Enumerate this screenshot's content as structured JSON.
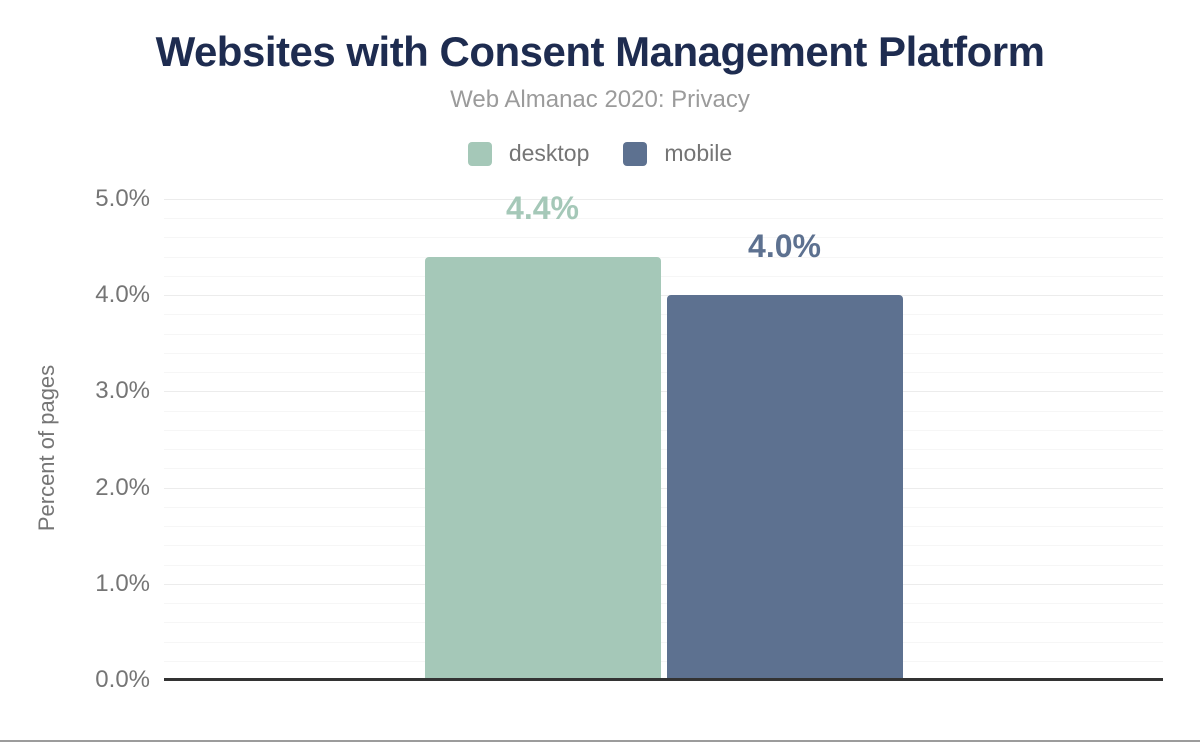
{
  "header": {
    "title": "Websites with Consent Management Platform",
    "subtitle": "Web Almanac 2020: Privacy",
    "title_color": "#1e2c50",
    "subtitle_color": "#9b9b9b"
  },
  "legend": {
    "items": [
      {
        "label": "desktop",
        "color": "#a5c8b8"
      },
      {
        "label": "mobile",
        "color": "#5d7190"
      }
    ],
    "text_color": "#757575"
  },
  "chart_data": {
    "type": "bar",
    "title": "Websites with Consent Management Platform",
    "subtitle": "Web Almanac 2020: Privacy",
    "categories": [
      "desktop",
      "mobile"
    ],
    "values": [
      4.4,
      4.0
    ],
    "value_labels": [
      "4.4%",
      "4.0%"
    ],
    "series_colors": [
      "#a5c8b8",
      "#5d7190"
    ],
    "ylabel": "Percent of pages",
    "xlabel": "",
    "ylim": [
      0,
      5
    ],
    "ytick_step": 1.0,
    "minor_gridline_step": 0.2,
    "ytick_labels": [
      "0.0%",
      "1.0%",
      "2.0%",
      "3.0%",
      "4.0%",
      "5.0%"
    ],
    "grid": "on",
    "legend_position": "top",
    "axis_line_color": "#333333",
    "major_gridline_color": "#ececec",
    "minor_gridline_color": "#f6f6f6"
  }
}
